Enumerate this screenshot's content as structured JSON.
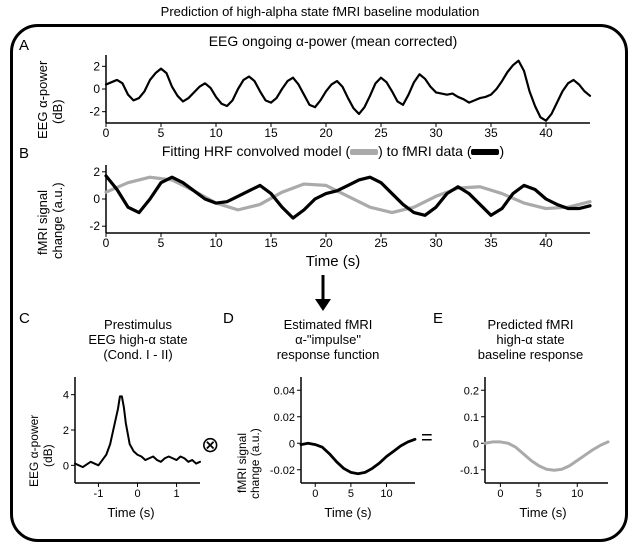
{
  "title": "Prediction of high-alpha state fMRI baseline modulation",
  "frame": {
    "stroke": "#000000",
    "radius": 28
  },
  "panelA": {
    "label": "A",
    "title": "EEG ongoing α-power (mean corrected)",
    "ylabel": "EEG α-power\n(dB)",
    "line_color": "#000000",
    "line_width": 2.2,
    "xlim": [
      0,
      44
    ],
    "ylim": [
      -3,
      3
    ],
    "xticks": [
      0,
      5,
      10,
      15,
      20,
      25,
      30,
      35,
      40
    ],
    "yticks": [
      -2,
      0,
      2
    ],
    "series": [
      [
        0,
        0.4
      ],
      [
        0.5,
        0.6
      ],
      [
        1,
        0.8
      ],
      [
        1.5,
        0.5
      ],
      [
        2,
        -0.5
      ],
      [
        2.5,
        -1.0
      ],
      [
        3,
        -0.8
      ],
      [
        3.5,
        -0.2
      ],
      [
        4,
        0.8
      ],
      [
        4.5,
        1.4
      ],
      [
        5,
        1.8
      ],
      [
        5.5,
        1.4
      ],
      [
        6,
        0.2
      ],
      [
        6.5,
        -0.6
      ],
      [
        7,
        -1.1
      ],
      [
        7.5,
        -0.8
      ],
      [
        8,
        -0.3
      ],
      [
        8.5,
        0.2
      ],
      [
        9,
        0.5
      ],
      [
        9.5,
        0.1
      ],
      [
        10,
        -0.7
      ],
      [
        10.5,
        -1.3
      ],
      [
        11,
        -1.5
      ],
      [
        11.5,
        -1.0
      ],
      [
        12,
        0.0
      ],
      [
        12.5,
        0.8
      ],
      [
        13,
        1.1
      ],
      [
        13.5,
        0.7
      ],
      [
        14,
        -0.2
      ],
      [
        14.5,
        -1.0
      ],
      [
        15,
        -1.2
      ],
      [
        15.5,
        -0.8
      ],
      [
        16,
        0.0
      ],
      [
        16.5,
        0.7
      ],
      [
        17,
        1.0
      ],
      [
        17.5,
        0.4
      ],
      [
        18,
        -0.5
      ],
      [
        18.5,
        -1.4
      ],
      [
        19,
        -1.6
      ],
      [
        19.5,
        -1.0
      ],
      [
        20,
        -0.2
      ],
      [
        20.5,
        0.4
      ],
      [
        21,
        0.7
      ],
      [
        21.5,
        0.2
      ],
      [
        22,
        -0.8
      ],
      [
        22.5,
        -1.7
      ],
      [
        23,
        -2.2
      ],
      [
        23.5,
        -1.6
      ],
      [
        24,
        -0.6
      ],
      [
        24.5,
        0.5
      ],
      [
        25,
        1.0
      ],
      [
        25.5,
        0.6
      ],
      [
        26,
        -0.2
      ],
      [
        26.5,
        -1.1
      ],
      [
        27,
        -1.4
      ],
      [
        27.5,
        -0.5
      ],
      [
        28,
        0.6
      ],
      [
        28.5,
        1.3
      ],
      [
        29,
        0.9
      ],
      [
        29.5,
        0.2
      ],
      [
        30,
        -0.3
      ],
      [
        30.5,
        -0.4
      ],
      [
        31,
        -0.5
      ],
      [
        31.5,
        -0.4
      ],
      [
        32,
        -0.7
      ],
      [
        32.5,
        -0.9
      ],
      [
        33,
        -1.2
      ],
      [
        33.5,
        -1.0
      ],
      [
        34,
        -0.8
      ],
      [
        34.5,
        -0.7
      ],
      [
        35,
        -0.5
      ],
      [
        35.5,
        0.0
      ],
      [
        36,
        0.7
      ],
      [
        36.5,
        1.5
      ],
      [
        37,
        2.1
      ],
      [
        37.5,
        2.5
      ],
      [
        38,
        1.6
      ],
      [
        38.5,
        -0.2
      ],
      [
        39,
        -1.5
      ],
      [
        39.5,
        -2.5
      ],
      [
        40,
        -2.8
      ],
      [
        40.5,
        -2.2
      ],
      [
        41,
        -1.2
      ],
      [
        41.5,
        -0.2
      ],
      [
        42,
        0.5
      ],
      [
        42.5,
        0.8
      ],
      [
        43,
        0.4
      ],
      [
        43.5,
        -0.2
      ],
      [
        44,
        -0.6
      ]
    ]
  },
  "panelB": {
    "label": "B",
    "title_prefix": "Fitting HRF convolved model (",
    "title_mid": ") to fMRI data (",
    "title_suffix": ")",
    "ylabel": "fMRI signal\nchange (a.u.)",
    "xlabel": "Time (s)",
    "model_color": "#aaaaaa",
    "data_color": "#000000",
    "line_width": 3.2,
    "xlim": [
      0,
      44
    ],
    "ylim": [
      -2.5,
      2.5
    ],
    "xticks": [
      0,
      5,
      10,
      15,
      20,
      25,
      30,
      35,
      40
    ],
    "yticks": [
      -2,
      0,
      2
    ],
    "model": [
      [
        0,
        0.5
      ],
      [
        2,
        1.2
      ],
      [
        4,
        1.6
      ],
      [
        6,
        1.4
      ],
      [
        8,
        0.6
      ],
      [
        10,
        -0.3
      ],
      [
        12,
        -0.8
      ],
      [
        14,
        -0.4
      ],
      [
        16,
        0.5
      ],
      [
        18,
        1.1
      ],
      [
        20,
        1.0
      ],
      [
        22,
        0.2
      ],
      [
        24,
        -0.6
      ],
      [
        26,
        -1.0
      ],
      [
        28,
        -0.6
      ],
      [
        30,
        0.2
      ],
      [
        32,
        0.8
      ],
      [
        34,
        0.9
      ],
      [
        36,
        0.4
      ],
      [
        38,
        -0.3
      ],
      [
        40,
        -0.7
      ],
      [
        42,
        -0.6
      ],
      [
        44,
        -0.2
      ]
    ],
    "data": [
      [
        0,
        1.7
      ],
      [
        1,
        0.7
      ],
      [
        2,
        -0.6
      ],
      [
        3,
        -1.0
      ],
      [
        4,
        0.0
      ],
      [
        5,
        1.2
      ],
      [
        6,
        1.6
      ],
      [
        7,
        1.2
      ],
      [
        8,
        0.6
      ],
      [
        9,
        0.0
      ],
      [
        10,
        -0.3
      ],
      [
        11,
        -0.2
      ],
      [
        12,
        0.2
      ],
      [
        13,
        0.6
      ],
      [
        14,
        1.0
      ],
      [
        15,
        0.4
      ],
      [
        16,
        -0.6
      ],
      [
        17,
        -1.4
      ],
      [
        18,
        -0.8
      ],
      [
        19,
        0.0
      ],
      [
        20,
        0.4
      ],
      [
        21,
        0.6
      ],
      [
        22,
        1.0
      ],
      [
        23,
        1.4
      ],
      [
        24,
        1.6
      ],
      [
        25,
        1.2
      ],
      [
        26,
        0.4
      ],
      [
        27,
        -0.4
      ],
      [
        28,
        -1.0
      ],
      [
        29,
        -1.2
      ],
      [
        30,
        -0.6
      ],
      [
        31,
        0.4
      ],
      [
        32,
        0.9
      ],
      [
        33,
        0.4
      ],
      [
        34,
        -0.4
      ],
      [
        35,
        -1.2
      ],
      [
        36,
        -0.7
      ],
      [
        37,
        0.4
      ],
      [
        38,
        1.0
      ],
      [
        39,
        0.7
      ],
      [
        40,
        0.0
      ],
      [
        41,
        -0.4
      ],
      [
        42,
        -0.7
      ],
      [
        43,
        -0.7
      ],
      [
        44,
        -0.5
      ]
    ]
  },
  "arrow": {
    "stroke": "#000000"
  },
  "conv_symbol": "⊗",
  "eq_symbol": "=",
  "panelC": {
    "label": "C",
    "title1": "Prestimulus",
    "title2": "EEG high-α state",
    "title3": "(Cond. I - II)",
    "ylabel": "EEG α-power\n(dB)",
    "xlabel": "Time (s)",
    "line_color": "#000000",
    "line_width": 2,
    "xlim": [
      -1.6,
      1.6
    ],
    "ylim": [
      -1,
      5
    ],
    "xticks": [
      -1,
      0,
      1
    ],
    "yticks": [
      0,
      2,
      4
    ],
    "series": [
      [
        -1.6,
        0.1
      ],
      [
        -1.4,
        -0.1
      ],
      [
        -1.2,
        0.2
      ],
      [
        -1.0,
        0.0
      ],
      [
        -0.9,
        0.3
      ],
      [
        -0.8,
        0.6
      ],
      [
        -0.7,
        1.2
      ],
      [
        -0.6,
        2.2
      ],
      [
        -0.5,
        3.2
      ],
      [
        -0.45,
        3.9
      ],
      [
        -0.4,
        3.9
      ],
      [
        -0.35,
        3.3
      ],
      [
        -0.3,
        2.4
      ],
      [
        -0.25,
        1.8
      ],
      [
        -0.2,
        1.2
      ],
      [
        -0.1,
        0.8
      ],
      [
        0.0,
        0.6
      ],
      [
        0.1,
        0.5
      ],
      [
        0.2,
        0.3
      ],
      [
        0.3,
        0.4
      ],
      [
        0.4,
        0.5
      ],
      [
        0.5,
        0.3
      ],
      [
        0.6,
        0.2
      ],
      [
        0.7,
        0.4
      ],
      [
        0.8,
        0.5
      ],
      [
        0.9,
        0.4
      ],
      [
        1.0,
        0.3
      ],
      [
        1.1,
        0.5
      ],
      [
        1.2,
        0.4
      ],
      [
        1.3,
        0.2
      ],
      [
        1.4,
        0.3
      ],
      [
        1.5,
        0.1
      ],
      [
        1.6,
        0.2
      ]
    ]
  },
  "panelD": {
    "label": "D",
    "title1": "Estimated fMRI",
    "title2": "α-\"impulse\"",
    "title3": "response function",
    "ylabel": "fMRI signal\nchange (a.u.)",
    "xlabel": "Time (s)",
    "line_color": "#000000",
    "line_width": 2.8,
    "xlim": [
      -2,
      14
    ],
    "ylim": [
      -0.03,
      0.05
    ],
    "xticks": [
      0,
      5,
      10
    ],
    "yticks": [
      -0.02,
      0,
      0.02,
      0.04
    ],
    "series": [
      [
        -2,
        -0.001
      ],
      [
        -1,
        0.0
      ],
      [
        0,
        -0.001
      ],
      [
        1,
        -0.003
      ],
      [
        2,
        -0.008
      ],
      [
        3,
        -0.014
      ],
      [
        4,
        -0.019
      ],
      [
        5,
        -0.022
      ],
      [
        6,
        -0.023
      ],
      [
        7,
        -0.022
      ],
      [
        8,
        -0.019
      ],
      [
        9,
        -0.015
      ],
      [
        10,
        -0.01
      ],
      [
        11,
        -0.006
      ],
      [
        12,
        -0.002
      ],
      [
        13,
        0.001
      ],
      [
        14,
        0.003
      ]
    ]
  },
  "panelE": {
    "label": "E",
    "title1": "Predicted fMRI",
    "title2": "high-α state",
    "title3": "baseline response",
    "xlabel": "Time (s)",
    "line_color": "#aaaaaa",
    "line_width": 3,
    "xlim": [
      -2,
      14
    ],
    "ylim": [
      -0.15,
      0.25
    ],
    "xticks": [
      0,
      5,
      10
    ],
    "yticks": [
      -0.1,
      0,
      0.1,
      0.2
    ],
    "series": [
      [
        -2,
        0.0
      ],
      [
        -1,
        0.005
      ],
      [
        0,
        0.005
      ],
      [
        1,
        0.0
      ],
      [
        2,
        -0.015
      ],
      [
        3,
        -0.04
      ],
      [
        4,
        -0.065
      ],
      [
        5,
        -0.085
      ],
      [
        6,
        -0.098
      ],
      [
        7,
        -0.102
      ],
      [
        8,
        -0.098
      ],
      [
        9,
        -0.085
      ],
      [
        10,
        -0.065
      ],
      [
        11,
        -0.045
      ],
      [
        12,
        -0.025
      ],
      [
        13,
        -0.008
      ],
      [
        14,
        0.005
      ]
    ]
  }
}
